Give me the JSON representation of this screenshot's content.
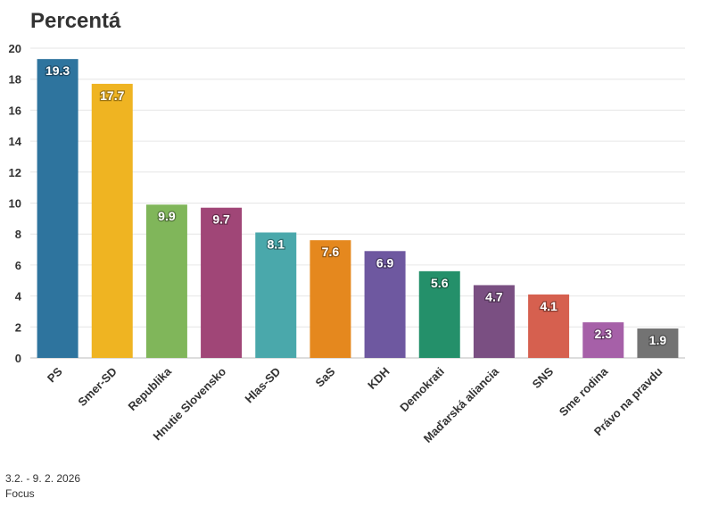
{
  "chart_data": {
    "type": "bar",
    "title": "Percentá",
    "categories": [
      "PS",
      "Smer-SD",
      "Republika",
      "Hnutie Slovensko",
      "Hlas-SD",
      "SaS",
      "KDH",
      "Demokrati",
      "Maďarská aliancia",
      "SNS",
      "Sme rodina",
      "Právo na pravdu"
    ],
    "values": [
      19.3,
      17.7,
      9.9,
      9.7,
      8.1,
      7.6,
      6.9,
      5.6,
      4.7,
      4.1,
      2.3,
      1.9
    ],
    "value_labels": [
      "19.3",
      "17.7",
      "9.9",
      "9.7",
      "8.1",
      "7.6",
      "6.9",
      "5.6",
      "4.7",
      "4.1",
      "2.3",
      "1.9"
    ],
    "colors": [
      "#2e749e",
      "#efb422",
      "#80b65a",
      "#a04677",
      "#4aa8ab",
      "#e5881e",
      "#6e58a0",
      "#24906a",
      "#7a4f82",
      "#d6604f",
      "#a660a8",
      "#737373"
    ],
    "ylim": [
      0,
      20
    ],
    "yticks": [
      0,
      2,
      4,
      6,
      8,
      10,
      12,
      14,
      16,
      18,
      20
    ],
    "ytick_labels": [
      "0",
      "2",
      "4",
      "6",
      "8",
      "10",
      "12",
      "14",
      "16",
      "18",
      "20"
    ],
    "grid": true,
    "xlabel": "",
    "ylabel": ""
  },
  "footer": {
    "date_range": "3.2. - 9. 2. 2026",
    "source": "Focus"
  }
}
